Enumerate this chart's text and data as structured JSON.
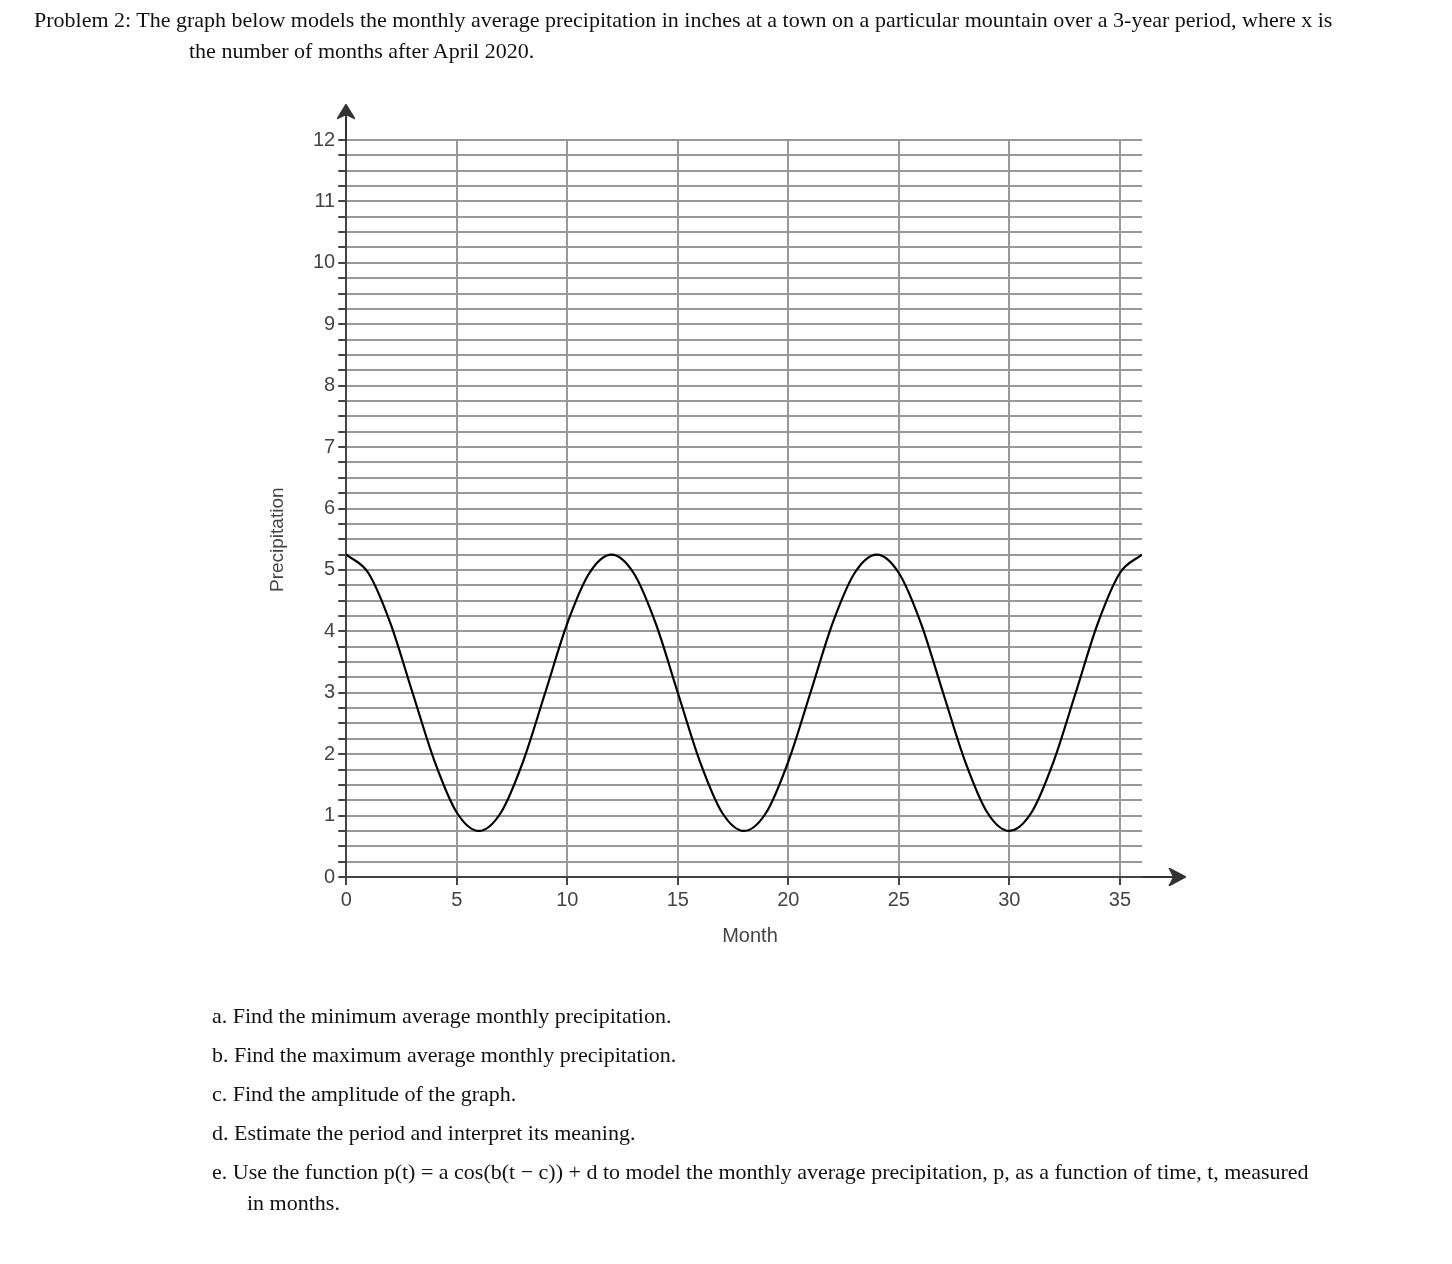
{
  "chart_data": {
    "type": "line",
    "title": "Problem 2: The graph below models the monthly average precipitation in inches at a town on a particular mountain over a 3-year period, where x is the number of months after April 2020.",
    "xlabel": "Month",
    "ylabel": "Precipitation",
    "x": [
      0,
      1,
      2,
      3,
      4,
      5,
      6,
      7,
      8,
      9,
      10,
      11,
      12,
      13,
      14,
      15,
      16,
      17,
      18,
      19,
      20,
      21,
      22,
      23,
      24,
      25,
      26,
      27,
      28,
      29,
      30,
      31,
      32,
      33,
      34,
      35,
      36
    ],
    "series": [
      {
        "color": "#000000",
        "values": [
          5.25,
          4.95,
          4.13,
          3,
          1.88,
          1.05,
          0.75,
          1.05,
          1.88,
          3,
          4.13,
          4.95,
          5.25,
          4.95,
          4.13,
          3,
          1.88,
          1.05,
          0.75,
          1.05,
          1.88,
          3,
          4.13,
          4.95,
          5.25,
          4.95,
          4.13,
          3,
          1.88,
          1.05,
          0.75,
          1.05,
          1.88,
          3,
          4.13,
          4.95,
          5.25
        ]
      }
    ],
    "xlim": [
      0,
      36
    ],
    "xticks": [
      0,
      5,
      10,
      15,
      20,
      25,
      30,
      35
    ],
    "ylim": [
      0,
      12
    ],
    "yticks": [
      0,
      {
        "value": 0.25,
        "label": null
      },
      {
        "value": 0.5,
        "label": null
      },
      {
        "value": 0.75,
        "label": null
      },
      1,
      {
        "value": 1.25,
        "label": null
      },
      {
        "value": 1.5,
        "label": null
      },
      {
        "value": 1.75,
        "label": null
      },
      2,
      {
        "value": 2.25,
        "label": null
      },
      {
        "value": 2.5,
        "label": null
      },
      {
        "value": 2.75,
        "label": null
      },
      3,
      {
        "value": 3.25,
        "label": null
      },
      {
        "value": 3.5,
        "label": null
      },
      {
        "value": 3.75,
        "label": null
      },
      4,
      {
        "value": 4.25,
        "label": null
      },
      {
        "value": 4.5,
        "label": null
      },
      {
        "value": 4.75,
        "label": null
      },
      5,
      {
        "value": 5.25,
        "label": null
      },
      {
        "value": 5.5,
        "label": null
      },
      {
        "value": 5.75,
        "label": null
      },
      6,
      {
        "value": 6.25,
        "label": null
      },
      {
        "value": 6.5,
        "label": null
      },
      {
        "value": 6.75,
        "label": null
      },
      7,
      {
        "value": 7.25,
        "label": null
      },
      {
        "value": 7.5,
        "label": null
      },
      {
        "value": 7.75,
        "label": null
      },
      8,
      {
        "value": 8.25,
        "label": null
      },
      {
        "value": 8.5,
        "label": null
      },
      {
        "value": 8.75,
        "label": null
      },
      9,
      {
        "value": 9.25,
        "label": null
      },
      {
        "value": 9.5,
        "label": null
      },
      {
        "value": 9.75,
        "label": null
      },
      10,
      {
        "value": 10.25,
        "label": null
      },
      {
        "value": 10.5,
        "label": null
      },
      {
        "value": 10.75,
        "label": null
      },
      11,
      {
        "value": 11.25,
        "label": null
      },
      {
        "value": 11.5,
        "label": null
      },
      {
        "value": 11.75,
        "label": null
      },
      12
    ],
    "grid": true,
    "legend": false,
    "marker": "none",
    "line_style": "solid",
    "annotations": [
      "a. Find the minimum average monthly precipitation.",
      "b. Find the maximum average monthly precipitation.",
      "c. Find the amplitude of the graph.",
      "d. Estimate the period and interpret its meaning.",
      "e. Use the function p(t) = a cos(b(t − c)) + d to model the monthly average precipitation, p, as a function of time, t, measured in months."
    ]
  }
}
